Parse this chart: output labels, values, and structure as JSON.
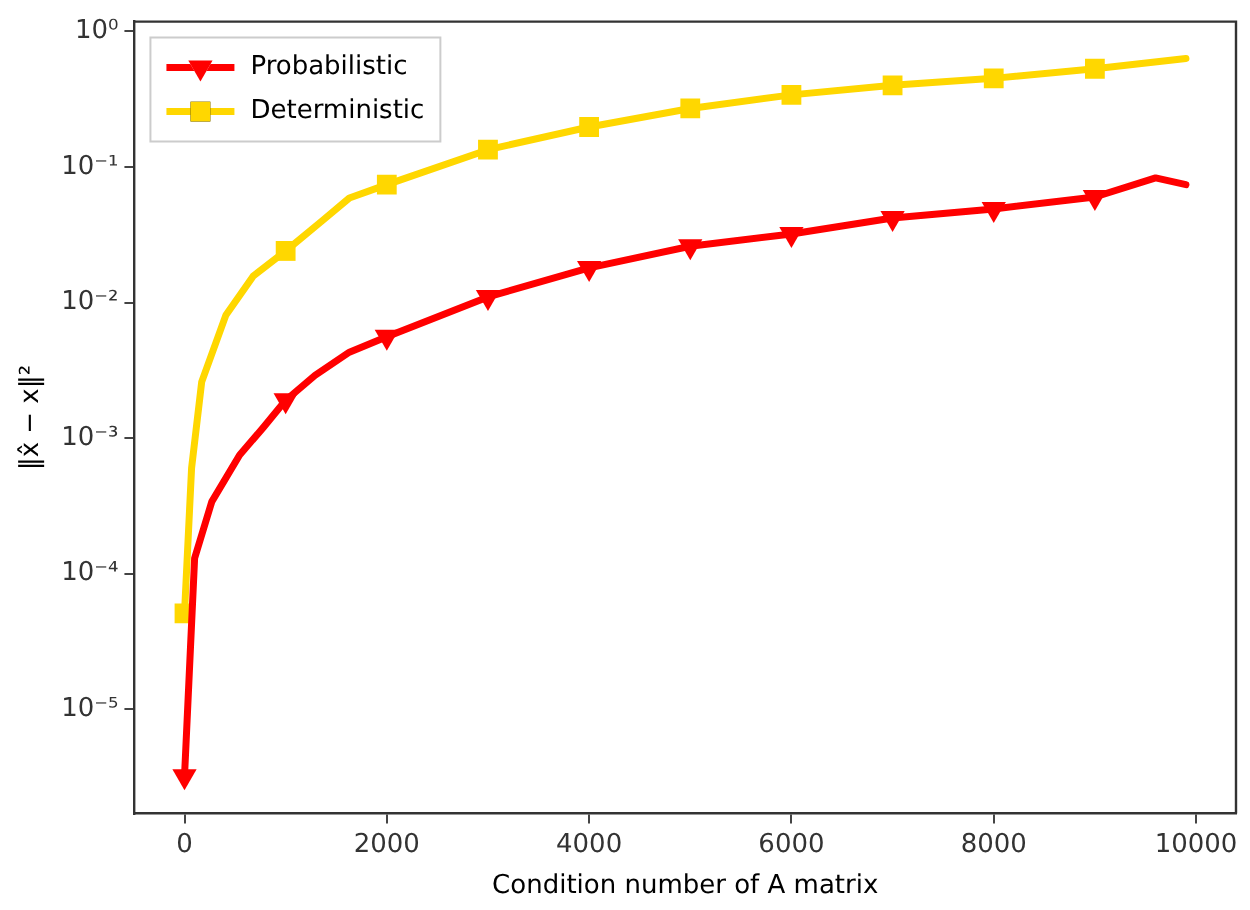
{
  "chart_data": {
    "type": "line",
    "xlabel": "Condition number of A matrix",
    "ylabel": "‖x̂ − x‖²",
    "log": "y",
    "legend": "top left",
    "grid": false,
    "xlim": [
      -495,
      10395
    ],
    "xticks": [
      0,
      2000,
      4000,
      6000,
      8000,
      10000
    ],
    "ylim": [
      1.7e-06,
      1.18
    ],
    "yticks": [
      {
        "value": 1e-05,
        "label": "10⁻⁵"
      },
      {
        "value": 0.0001,
        "label": "10⁻⁴"
      },
      {
        "value": 0.001,
        "label": "10⁻³"
      },
      {
        "value": 0.01,
        "label": "10⁻²"
      },
      {
        "value": 0.1,
        "label": "10⁻¹"
      },
      {
        "value": 1,
        "label": "10⁰"
      }
    ],
    "series": [
      {
        "name": "Probabilistic",
        "color": "#ff0000",
        "marker": "triangle",
        "x": [
          0,
          100,
          270,
          545,
          780,
          1000,
          1290,
          1630,
          2000,
          3000,
          4000,
          5000,
          6000,
          7000,
          8000,
          9000,
          9600,
          9900
        ],
        "values": [
          3.2e-06,
          0.00013,
          0.00034,
          0.00075,
          0.0012,
          0.0019,
          0.0029,
          0.0043,
          0.0056,
          0.011,
          0.018,
          0.026,
          0.032,
          0.042,
          0.049,
          0.06,
          0.083,
          0.074
        ]
      },
      {
        "name": "Deterministic",
        "color": "#ffd700",
        "marker": "square",
        "x": [
          0,
          70,
          170,
          410,
          680,
          1000,
          1360,
          1630,
          2000,
          3000,
          4000,
          5000,
          6000,
          7000,
          8000,
          9000,
          9900
        ],
        "values": [
          5.1e-05,
          0.0006,
          0.0026,
          0.0081,
          0.0157,
          0.024,
          0.04,
          0.059,
          0.074,
          0.134,
          0.197,
          0.27,
          0.34,
          0.4,
          0.45,
          0.53,
          0.63
        ]
      }
    ]
  }
}
